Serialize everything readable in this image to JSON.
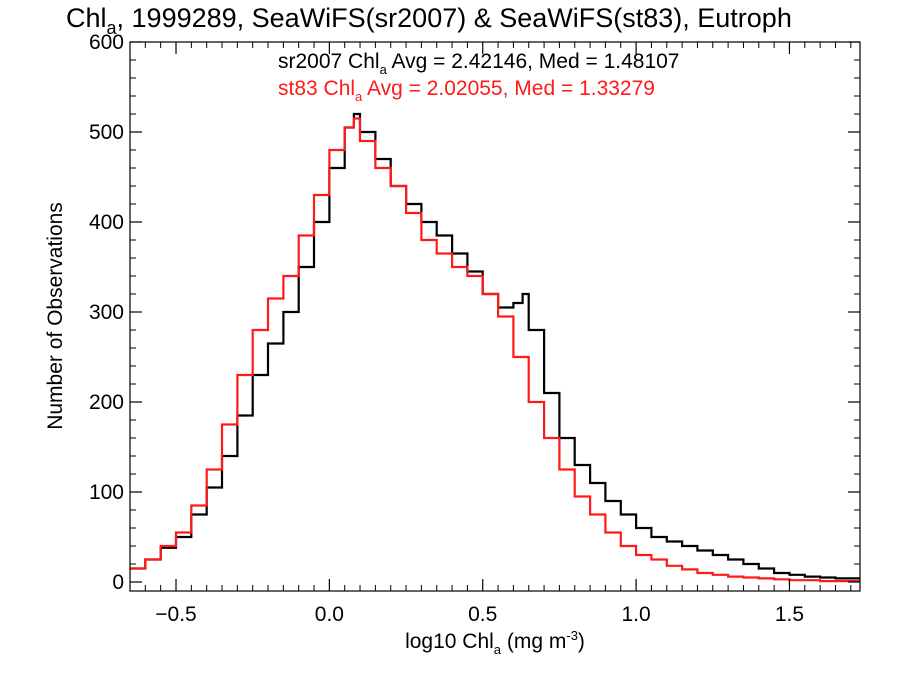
{
  "chart_data": {
    "type": "line",
    "title": {
      "pre": "Chl",
      "sub": "a",
      "post": ", 1999289, SeaWiFS(sr2007) & SeaWiFS(st83), Eutroph"
    },
    "xlabel": {
      "pre": "log10 Chl",
      "sub": "a",
      "mid": " (mg m",
      "sup": "-3",
      "post": ")"
    },
    "ylabel": "Number of Observations",
    "xlim": [
      -0.65,
      1.73
    ],
    "ylim": [
      -10,
      600
    ],
    "xticks": [
      -0.5,
      0.0,
      0.5,
      1.0,
      1.5
    ],
    "xtick_labels": [
      "−0.5",
      "0.0",
      "0.5",
      "1.0",
      "1.5"
    ],
    "yticks": [
      0,
      100,
      200,
      300,
      400,
      500,
      600
    ],
    "ytick_labels": [
      "0",
      "100",
      "200",
      "300",
      "400",
      "500",
      "600"
    ],
    "grid": false,
    "series": [
      {
        "name": "sr2007",
        "color": "#000000",
        "annotation": {
          "pre": "sr2007 Chl",
          "sub": "a",
          "post": " Avg = 2.42146, Med = 1.48107"
        },
        "x": [
          -0.65,
          -0.6,
          -0.55,
          -0.5,
          -0.45,
          -0.4,
          -0.35,
          -0.3,
          -0.25,
          -0.2,
          -0.15,
          -0.1,
          -0.05,
          0.0,
          0.05,
          0.08,
          0.1,
          0.15,
          0.2,
          0.25,
          0.3,
          0.35,
          0.4,
          0.45,
          0.5,
          0.55,
          0.6,
          0.63,
          0.65,
          0.7,
          0.75,
          0.8,
          0.85,
          0.9,
          0.95,
          1.0,
          1.05,
          1.1,
          1.15,
          1.2,
          1.25,
          1.3,
          1.35,
          1.4,
          1.45,
          1.5,
          1.55,
          1.6,
          1.65,
          1.73
        ],
        "y": [
          15,
          25,
          38,
          50,
          75,
          105,
          140,
          185,
          230,
          265,
          300,
          350,
          400,
          460,
          505,
          520,
          500,
          470,
          440,
          420,
          400,
          385,
          365,
          345,
          320,
          305,
          310,
          320,
          280,
          210,
          160,
          130,
          110,
          90,
          75,
          60,
          50,
          45,
          40,
          35,
          30,
          25,
          20,
          15,
          10,
          8,
          6,
          5,
          4,
          3
        ]
      },
      {
        "name": "st83",
        "color": "#ff1a1a",
        "annotation": {
          "pre": "st83 Chl",
          "sub": "a",
          "post": " Avg = 2.02055, Med = 1.33279"
        },
        "x": [
          -0.65,
          -0.6,
          -0.55,
          -0.5,
          -0.45,
          -0.4,
          -0.35,
          -0.3,
          -0.25,
          -0.2,
          -0.15,
          -0.1,
          -0.05,
          0.0,
          0.05,
          0.08,
          0.1,
          0.15,
          0.2,
          0.25,
          0.3,
          0.35,
          0.4,
          0.45,
          0.5,
          0.55,
          0.6,
          0.65,
          0.7,
          0.75,
          0.8,
          0.85,
          0.9,
          0.95,
          1.0,
          1.05,
          1.1,
          1.15,
          1.2,
          1.25,
          1.3,
          1.35,
          1.4,
          1.45,
          1.5,
          1.55,
          1.6,
          1.65,
          1.73
        ],
        "y": [
          15,
          25,
          40,
          55,
          85,
          125,
          175,
          230,
          280,
          315,
          340,
          385,
          430,
          480,
          505,
          515,
          490,
          460,
          440,
          410,
          380,
          365,
          350,
          340,
          320,
          295,
          250,
          200,
          160,
          125,
          95,
          75,
          55,
          40,
          30,
          25,
          18,
          14,
          10,
          8,
          6,
          5,
          4,
          3,
          2,
          2,
          1,
          1,
          1
        ]
      }
    ]
  }
}
